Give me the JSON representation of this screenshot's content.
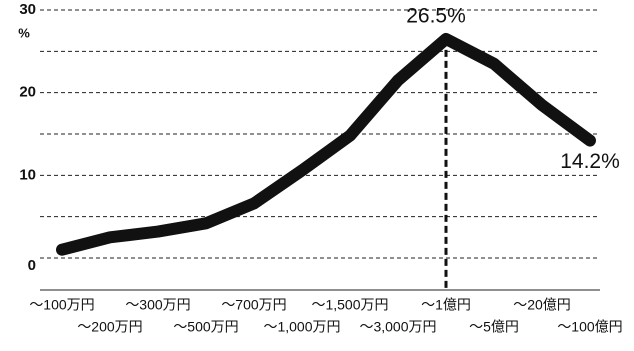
{
  "chart_data": {
    "type": "line",
    "ylabel": "%",
    "categories": [
      "～100万円",
      "～200万円",
      "～300万円",
      "～500万円",
      "～700万円",
      "～1,000万円",
      "～1,500万円",
      "～3,000万円",
      "～1億円",
      "～5億円",
      "～20億円",
      "～100億円"
    ],
    "series": [
      {
        "color": "#111111",
        "values": [
          1.0,
          2.5,
          3.2,
          4.2,
          6.6,
          10.6,
          14.8,
          21.5,
          26.5,
          23.5,
          18.5,
          14.2
        ],
        "value_labels": [
          null,
          null,
          null,
          null,
          null,
          null,
          null,
          null,
          "26.5%",
          null,
          null,
          "14.2%"
        ]
      }
    ],
    "ylim": [
      0,
      30
    ],
    "yticks": [
      0,
      10,
      20,
      30
    ],
    "minor_yticks": [
      5,
      15,
      25
    ],
    "grid": true
  }
}
